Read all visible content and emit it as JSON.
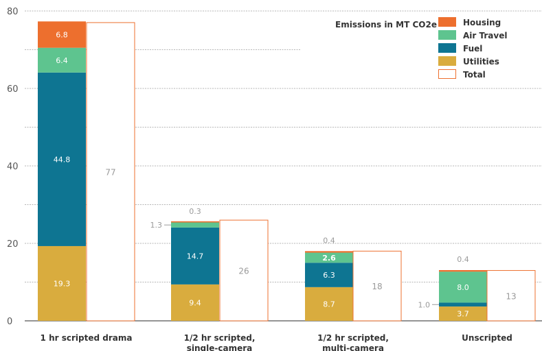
{
  "chart_data": {
    "type": "bar",
    "categories": [
      "1 hr scripted drama",
      "1/2  hr scripted, single-camera",
      "1/2  hr scripted, multi-camera",
      "Unscripted"
    ],
    "category_lines": [
      [
        "1 hr scripted drama"
      ],
      [
        "1/2  hr scripted,",
        "single-camera"
      ],
      [
        "1/2  hr scripted,",
        "multi-camera"
      ],
      [
        "Unscripted"
      ]
    ],
    "series": [
      {
        "name": "Utilities",
        "color": "#d9ac3e",
        "values": [
          19.3,
          9.4,
          8.7,
          3.7
        ],
        "labels": [
          "19.3",
          "9.4",
          "8.7",
          "3.7"
        ]
      },
      {
        "name": "Fuel",
        "color": "#0e7592",
        "values": [
          44.8,
          14.7,
          6.3,
          1.0
        ],
        "labels": [
          "44.8",
          "14.7",
          "6.3",
          "1.0"
        ]
      },
      {
        "name": "Air Travel",
        "color": "#5ec48f",
        "values": [
          6.4,
          1.3,
          2.6,
          8.0
        ],
        "labels": [
          "6.4",
          "1.3",
          "2.6",
          "8.0"
        ]
      },
      {
        "name": "Housing",
        "color": "#ed6f2e",
        "values": [
          6.8,
          0.3,
          0.4,
          0.4
        ],
        "labels": [
          "6.8",
          "0.3",
          "0.4",
          "0.4"
        ]
      }
    ],
    "totals": {
      "name": "Total",
      "values": [
        77,
        26,
        18,
        13
      ],
      "labels": [
        "77",
        "26",
        "18",
        "13"
      ],
      "border_color": "#ed6f2e"
    },
    "ylim": [
      0,
      80
    ],
    "yticks": [
      "0",
      "20",
      "40",
      "60",
      "80"
    ],
    "legend_title": "Emissions in MT CO2e",
    "legend_order": [
      "Housing",
      "Air Travel",
      "Fuel",
      "Utilities",
      "Total"
    ],
    "legend_position": "top-right",
    "grid": true
  }
}
